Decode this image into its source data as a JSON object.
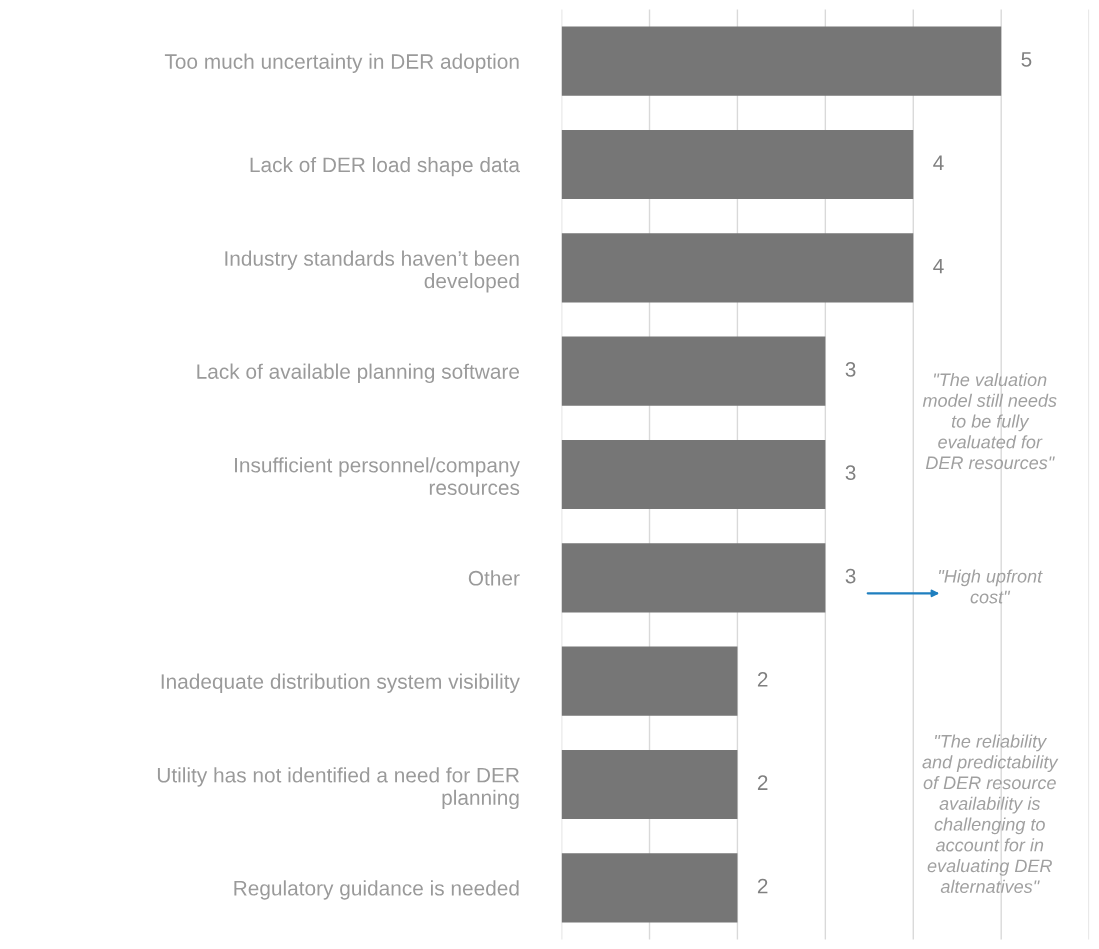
{
  "chart_data": {
    "type": "bar",
    "orientation": "horizontal",
    "categories": [
      "Too much uncertainty in DER adoption",
      "Lack of DER load shape data",
      "Industry standards haven’t been\ndeveloped",
      "Lack of available planning software",
      "Insufficient personnel/company\nresources",
      "Other",
      "Inadequate distribution system visibility",
      "Utility has not identified a need for DER\nplanning",
      "Regulatory guidance is needed"
    ],
    "values": [
      5,
      4,
      4,
      3,
      3,
      3,
      2,
      2,
      2
    ],
    "color": "#767676",
    "data_labels": true,
    "xlim": [
      0,
      6
    ],
    "xticks": [
      {
        "value": 0,
        "label": null
      },
      {
        "value": 1,
        "label": null
      },
      {
        "value": 2,
        "label": null
      },
      {
        "value": 3,
        "label": null
      },
      {
        "value": 4,
        "label": null
      },
      {
        "value": 5,
        "label": null
      },
      {
        "value": 6,
        "label": null
      }
    ],
    "tick_labels": "y",
    "grid": "x",
    "annotations": [
      "\"The valuation\nmodel still needs\nto be fully\nevaluated for\nDER resources\"",
      "\"High upfront\ncost\"",
      "\"The reliability\nand predictability\nof DER resource\navailability is\nchallenging to\naccount for in\nevaluating DER\nalternatives\""
    ]
  }
}
